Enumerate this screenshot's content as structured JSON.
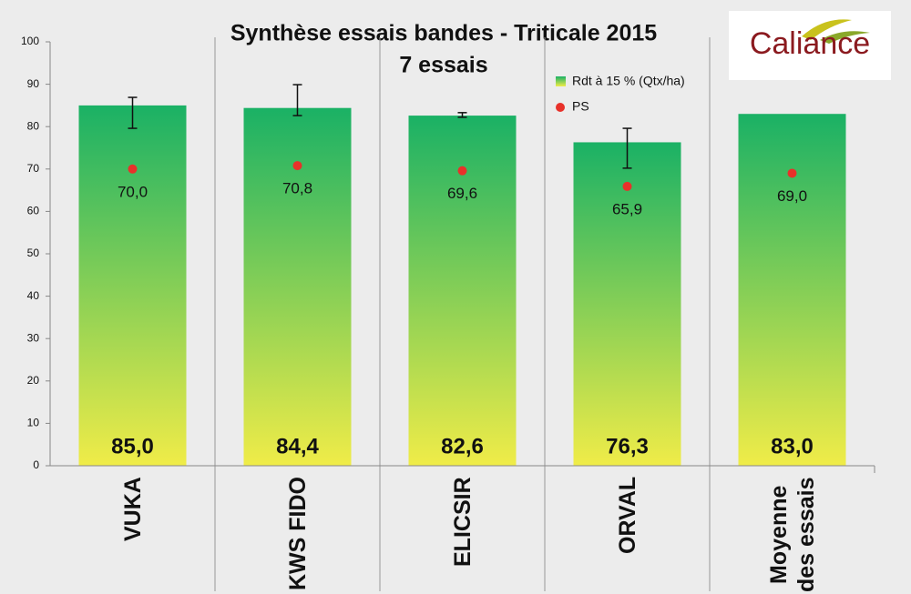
{
  "chart_data": {
    "type": "bar",
    "title": "Synthèse essais bandes - Triticale 2015",
    "subtitle": "7 essais",
    "logo": "Caliance",
    "categories": [
      "VUKA",
      "KWS FIDO",
      "ELICSIR",
      "ORVAL",
      "Moyenne\ndes essais"
    ],
    "ylim": [
      0,
      100
    ],
    "yticks": [
      0,
      10,
      20,
      30,
      40,
      50,
      60,
      70,
      80,
      90,
      100
    ],
    "grid": false,
    "legend": "top-right",
    "series": [
      {
        "name": "Rdt à 15 % (Qtx/ha)",
        "color_top": "#1ab165",
        "color_bottom": "#f0ec48",
        "gradient_reversed": [
          false,
          false,
          false,
          false,
          true
        ],
        "values": [
          85.0,
          84.4,
          82.6,
          76.3,
          83.0
        ],
        "value_labels": [
          "85,0",
          "84,4",
          "82,6",
          "76,3",
          "83,0"
        ],
        "errors": [
          [
            79.6,
            86.9
          ],
          [
            82.6,
            89.9
          ],
          [
            82.2,
            83.3
          ],
          [
            70.2,
            79.6
          ],
          null
        ]
      },
      {
        "name": "PS",
        "color": "#e8312a",
        "values": [
          70.0,
          70.8,
          69.6,
          65.9,
          69.0
        ],
        "value_labels": [
          "70,0",
          "70,8",
          "69,6",
          "65,9",
          "69,0"
        ]
      }
    ]
  }
}
